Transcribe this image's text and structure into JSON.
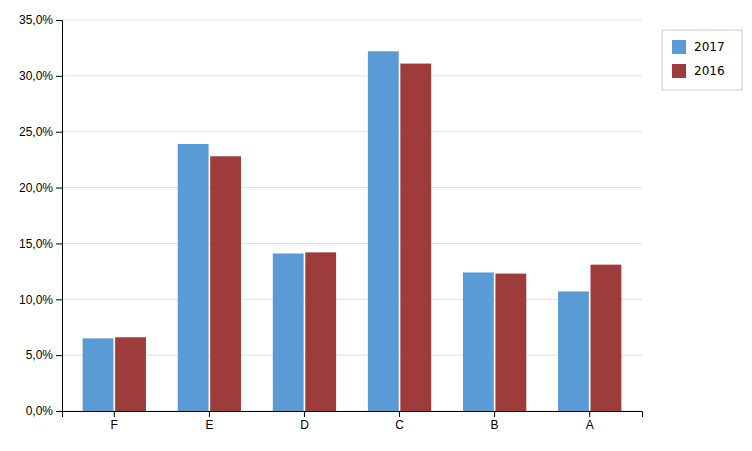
{
  "chart_data": {
    "type": "bar",
    "categories": [
      "F",
      "E",
      "D",
      "C",
      "B",
      "A"
    ],
    "series": [
      {
        "name": "2017",
        "color": "#5B9BD5",
        "values": [
          0.065,
          0.239,
          0.141,
          0.322,
          0.124,
          0.107
        ]
      },
      {
        "name": "2016",
        "color": "#9E3B3B",
        "values": [
          0.066,
          0.228,
          0.142,
          0.311,
          0.123,
          0.131
        ]
      }
    ],
    "ylim": [
      0,
      0.35
    ],
    "yticks": [
      {
        "value": 0.0,
        "label": "0,0%"
      },
      {
        "value": 0.05,
        "label": "5,0%"
      },
      {
        "value": 0.1,
        "label": "10,0%"
      },
      {
        "value": 0.15,
        "label": "15,0%"
      },
      {
        "value": 0.2,
        "label": "20,0%"
      },
      {
        "value": 0.25,
        "label": "25,0%"
      },
      {
        "value": 0.3,
        "label": "30,0%"
      },
      {
        "value": 0.35,
        "label": "35,0%"
      }
    ],
    "grid": true,
    "legend": "right"
  }
}
